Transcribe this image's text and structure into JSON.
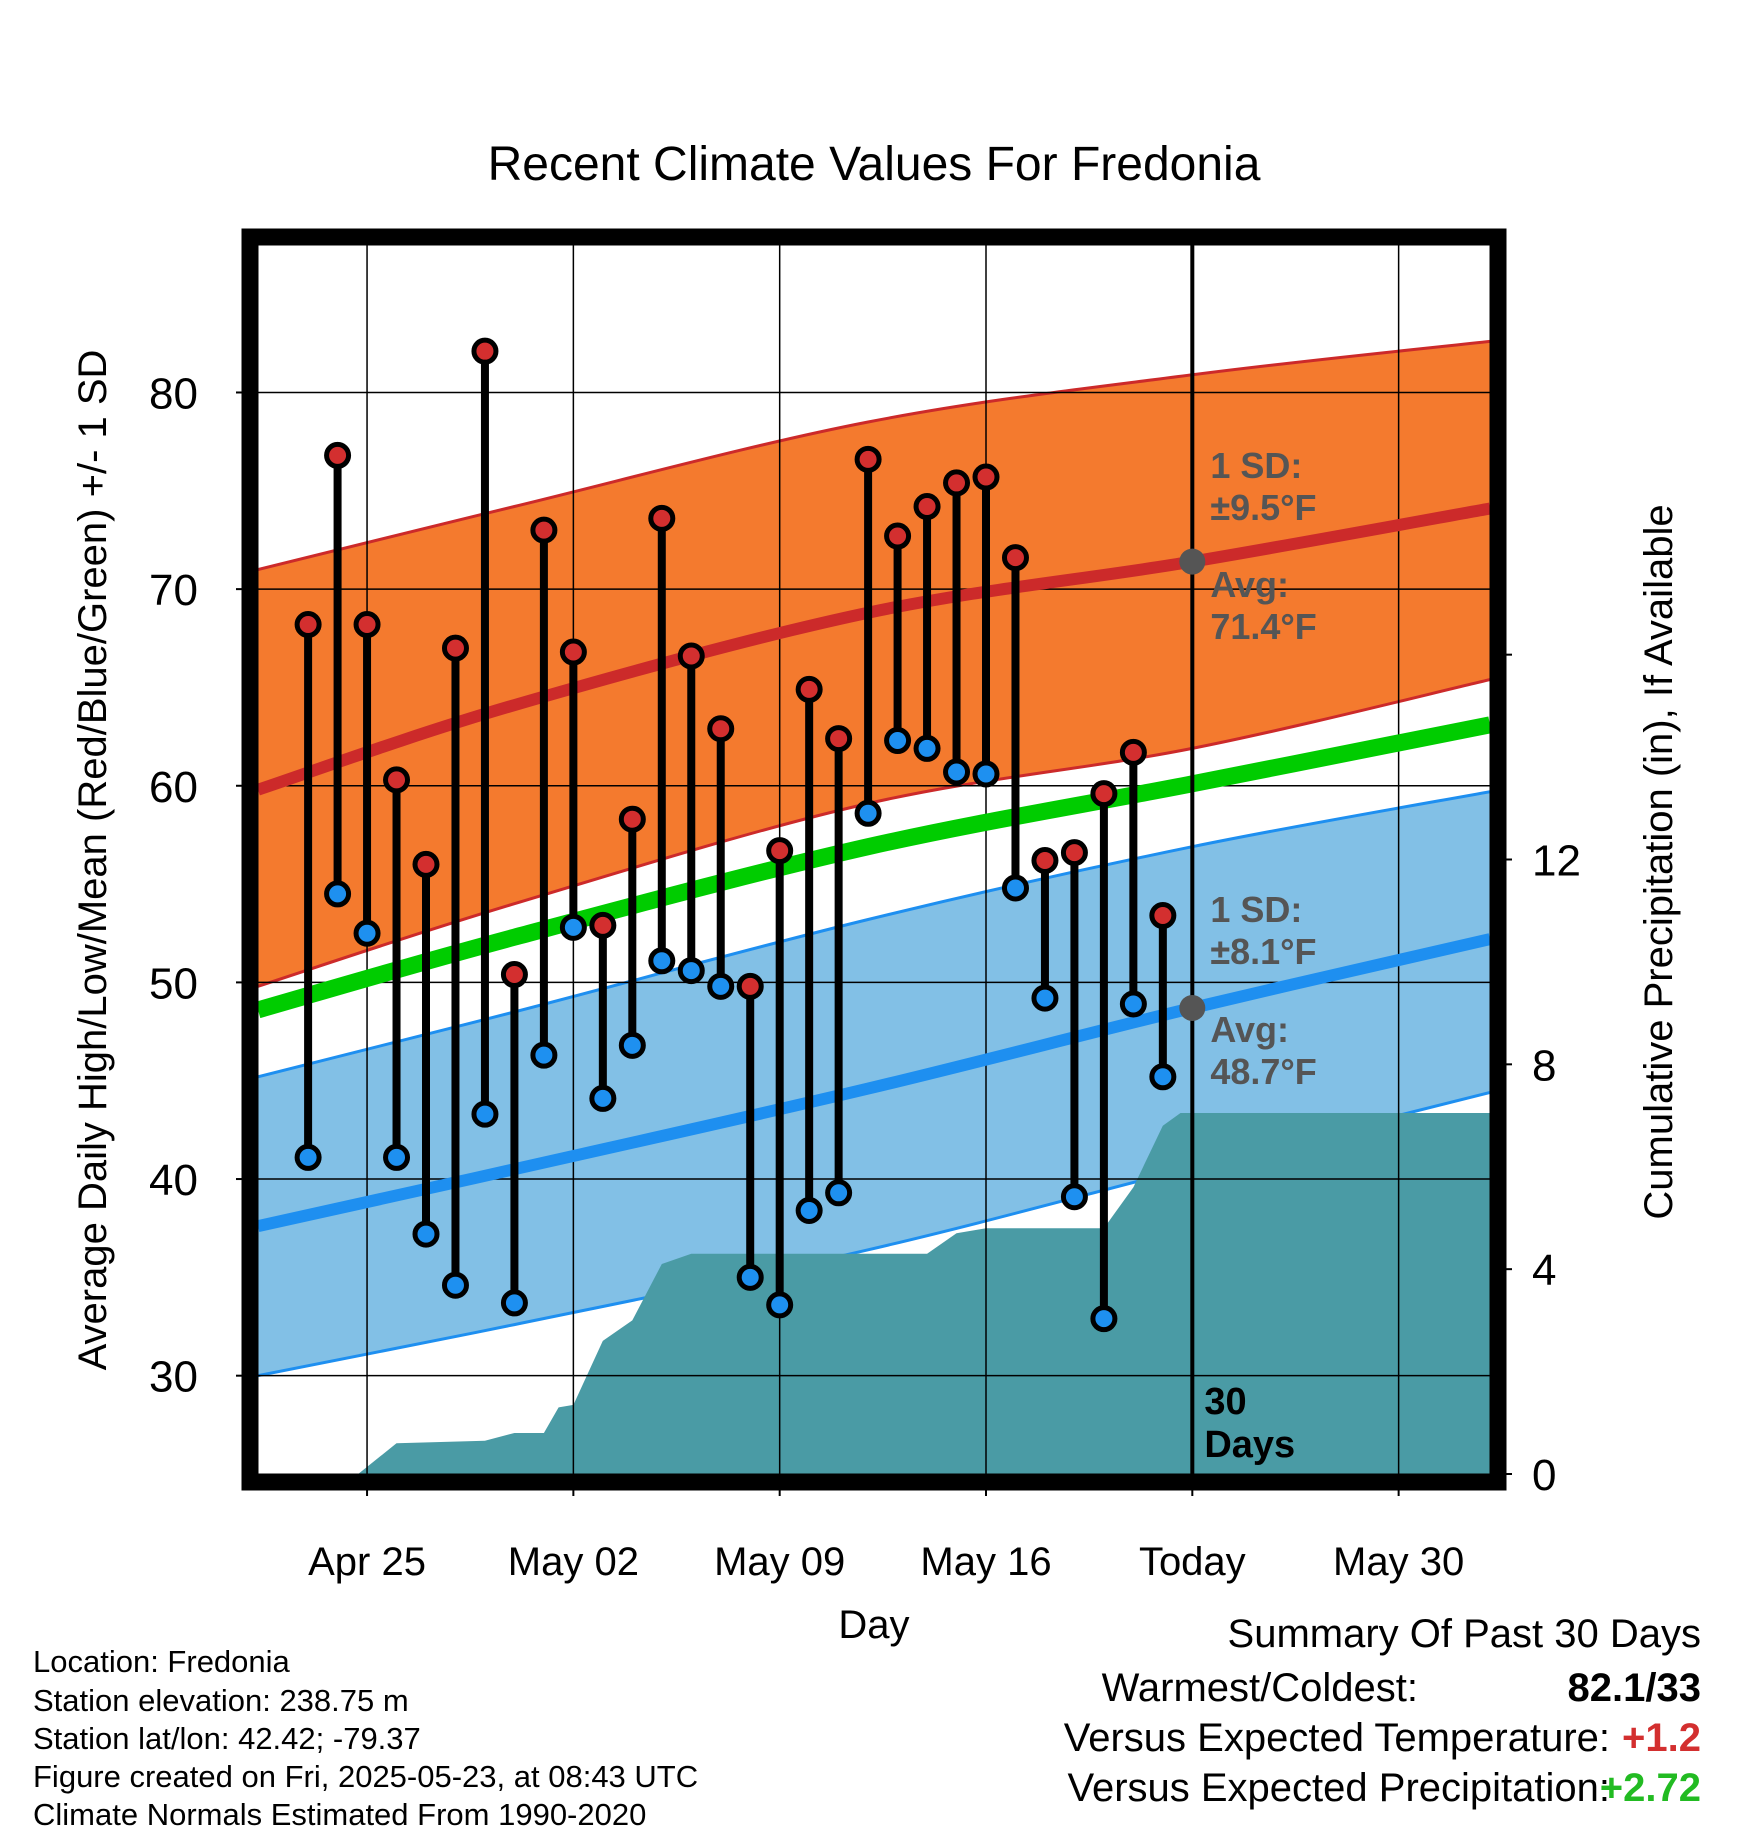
{
  "chart_data": {
    "type": "line",
    "title": "Recent Climate Values For Fredonia",
    "xlabel": "Day",
    "ylabel": "Average Daily High/Low/Mean (Red/Blue/Green) +/- 1 SD",
    "y2label": "Cumulative Precipitation (in), If Available",
    "ylim": [
      25,
      87.5
    ],
    "y2lim": [
      0,
      24
    ],
    "x_tick_labels": [
      "Apr 25",
      "May 02",
      "May 09",
      "May 16",
      "Today",
      "May 30"
    ],
    "x_tick_days": [
      3,
      10,
      17,
      24,
      31,
      38
    ],
    "xlim": [
      -0.7,
      41.1
    ],
    "y_ticks": [
      30,
      40,
      50,
      60,
      70,
      80
    ],
    "y2_ticks": [
      0,
      4,
      8,
      12
    ],
    "today_day": 31,
    "today_label": "30\nDays",
    "normals": {
      "high_mean": [
        [
          -0.7,
          59.8
        ],
        [
          8,
          64.1
        ],
        [
          20,
          68.8
        ],
        [
          31,
          71.4
        ],
        [
          41.1,
          74.1
        ]
      ],
      "high_upper": [
        [
          -0.7,
          71.0
        ],
        [
          8,
          74.2
        ],
        [
          20,
          78.5
        ],
        [
          31,
          80.9
        ],
        [
          41.1,
          82.6
        ]
      ],
      "high_lower": [
        [
          -0.7,
          49.8
        ],
        [
          8,
          54.0
        ],
        [
          20,
          59.1
        ],
        [
          31,
          61.9
        ],
        [
          41.1,
          65.4
        ]
      ],
      "low_mean": [
        [
          -0.7,
          37.6
        ],
        [
          8,
          40.5
        ],
        [
          20,
          44.6
        ],
        [
          31,
          48.7
        ],
        [
          41.1,
          52.2
        ]
      ],
      "low_upper": [
        [
          -0.7,
          45.2
        ],
        [
          8,
          48.5
        ],
        [
          20,
          53.2
        ],
        [
          31,
          56.9
        ],
        [
          41.1,
          59.7
        ]
      ],
      "low_lower": [
        [
          -0.7,
          30.0
        ],
        [
          8,
          32.6
        ],
        [
          20,
          36.4
        ],
        [
          31,
          40.6
        ],
        [
          41.1,
          44.4
        ]
      ],
      "daily_mean": [
        [
          -0.7,
          48.6
        ],
        [
          8,
          52.3
        ],
        [
          20,
          56.9
        ],
        [
          31,
          60.1
        ],
        [
          41.1,
          63.1
        ]
      ]
    },
    "annotations": {
      "high_sd": "1 SD:",
      "high_sd_val": "±9.5°F",
      "high_avg": "Avg:",
      "high_avg_val": "71.4°F",
      "low_sd": "1 SD:",
      "low_sd_val": "±8.1°F",
      "low_avg": "Avg:",
      "low_avg_val": "48.7°F"
    },
    "days": [
      1,
      2,
      3,
      4,
      5,
      6,
      7,
      8,
      9,
      10,
      11,
      12,
      13,
      14,
      15,
      16,
      17,
      18,
      19,
      20,
      21,
      22,
      23,
      24,
      25,
      26,
      27,
      28,
      29,
      30
    ],
    "highs": [
      68.2,
      76.8,
      68.2,
      60.3,
      56.0,
      67.0,
      82.1,
      50.4,
      73.0,
      66.8,
      52.9,
      58.3,
      73.6,
      66.6,
      62.9,
      49.8,
      56.7,
      64.9,
      62.4,
      76.6,
      72.7,
      74.2,
      75.4,
      75.7,
      71.6,
      56.2,
      56.6,
      59.6,
      61.7,
      53.4
    ],
    "lows": [
      41.1,
      54.5,
      52.5,
      41.1,
      37.2,
      34.6,
      43.3,
      33.7,
      46.3,
      52.8,
      44.1,
      46.8,
      51.1,
      50.6,
      49.8,
      35.0,
      33.6,
      38.4,
      39.3,
      58.6,
      62.3,
      61.9,
      60.7,
      60.6,
      54.8,
      49.2,
      39.1,
      32.9,
      48.9,
      45.2
    ],
    "precip_cumulative": [
      [
        2.7,
        0.0
      ],
      [
        4,
        0.6
      ],
      [
        7,
        0.65
      ],
      [
        8,
        0.8
      ],
      [
        9,
        0.8
      ],
      [
        9.5,
        1.3
      ],
      [
        10,
        1.35
      ],
      [
        11,
        2.6
      ],
      [
        12,
        3.0
      ],
      [
        13,
        4.1
      ],
      [
        14,
        4.3
      ],
      [
        22,
        4.3
      ],
      [
        23,
        4.7
      ],
      [
        24,
        4.8
      ],
      [
        28,
        4.8
      ],
      [
        29,
        5.6
      ],
      [
        30,
        6.8
      ],
      [
        30.6,
        7.05
      ],
      [
        41.1,
        7.05
      ]
    ],
    "summary_stats": {
      "warmest": 82.1,
      "coldest": 33,
      "temp_departure": 1.2,
      "precip_departure": 2.72
    },
    "colors": {
      "high_band": "#f47a2e",
      "high_line": "#cc2a2a",
      "low_band": "#82c0e6",
      "low_line": "#1e8ff0",
      "mean_line": "#00cc00",
      "precip": "#4a9ba5",
      "high_dot": "#d32f2f",
      "low_dot": "#1e90f0",
      "annotation_text": "#555555",
      "positive_temp": "#d32f2f",
      "positive_precip": "#22bb22"
    }
  },
  "footer": {
    "location": "Location: Fredonia",
    "elevation": "Station elevation: 238.75 m",
    "latlon": "Station lat/lon: 42.42; -79.37",
    "created": "Figure created on Fri, 2025-05-23, at 08:43 UTC",
    "normals": "Climate Normals Estimated From 1990-2020"
  },
  "summary": {
    "title": "Summary Of Past 30 Days",
    "warmest_label": "Warmest/Coldest:",
    "warmest_value": "82.1/33",
    "temp_label": "Versus Expected Temperature:",
    "temp_value": "+1.2",
    "precip_label": "Versus Expected Precipitation:",
    "precip_value": "+2.72"
  }
}
